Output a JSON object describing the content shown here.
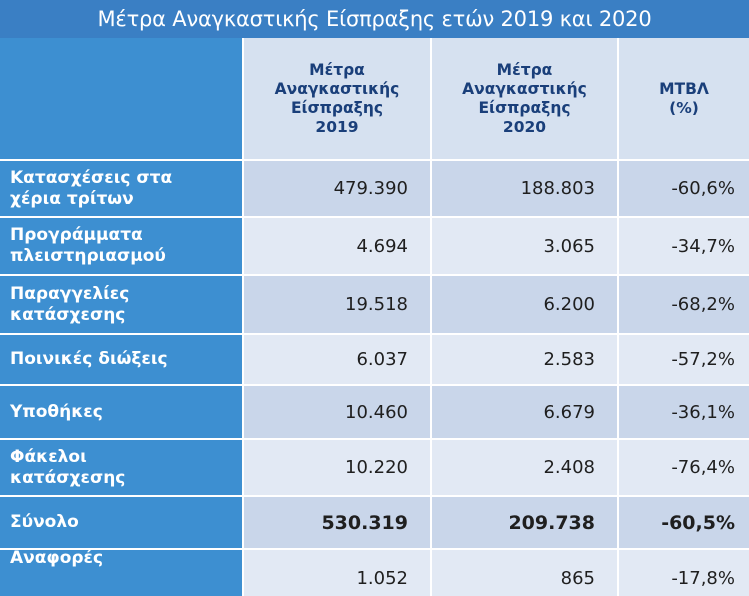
{
  "title": "Μέτρα Αναγκαστικής Είσπραξης ετών 2019 και 2020",
  "columns": [
    [
      "Μέτρα",
      "Αναγκαστικής",
      "Είσπραξης",
      "2019"
    ],
    [
      "Μέτρα",
      "Αναγκαστικής",
      "Είσπραξης",
      "2020"
    ],
    [
      "ΜΤΒΛ",
      "(%)"
    ]
  ],
  "rows": [
    {
      "label": [
        "Κατασχέσεις στα",
        "χέρια τρίτων"
      ],
      "v2019": "479.390",
      "v2020": "188.803",
      "change": "-60,6%"
    },
    {
      "label": [
        "Προγράμματα",
        "πλειστηριασμού"
      ],
      "v2019": "4.694",
      "v2020": "3.065",
      "change": "-34,7%"
    },
    {
      "label": [
        "Παραγγελίες",
        "κατάσχεσης"
      ],
      "v2019": "19.518",
      "v2020": "6.200",
      "change": "-68,2%"
    },
    {
      "label": [
        "Ποινικές διώξεις"
      ],
      "v2019": "6.037",
      "v2020": "2.583",
      "change": "-57,2%"
    },
    {
      "label": [
        "Υποθήκες"
      ],
      "v2019": "10.460",
      "v2020": "6.679",
      "change": "-36,1%"
    },
    {
      "label": [
        "Φάκελοι",
        "κατάσχεσης"
      ],
      "v2019": "10.220",
      "v2020": "2.408",
      "change": "-76,4%"
    },
    {
      "label": [
        "Σύνολο"
      ],
      "v2019": "530.319",
      "v2020": "209.738",
      "change": "-60,5%"
    },
    {
      "label": [
        "Αναφορές"
      ],
      "v2019": "1.052",
      "v2020": "865",
      "change": "-17,8%"
    }
  ],
  "colors": {
    "title_bg": "#3a7fc4",
    "label_bg": "#3d8fd1",
    "cell_dark": "#c9d6ea",
    "cell_light": "#e2e9f4",
    "header_text": "#1a3f7a"
  }
}
